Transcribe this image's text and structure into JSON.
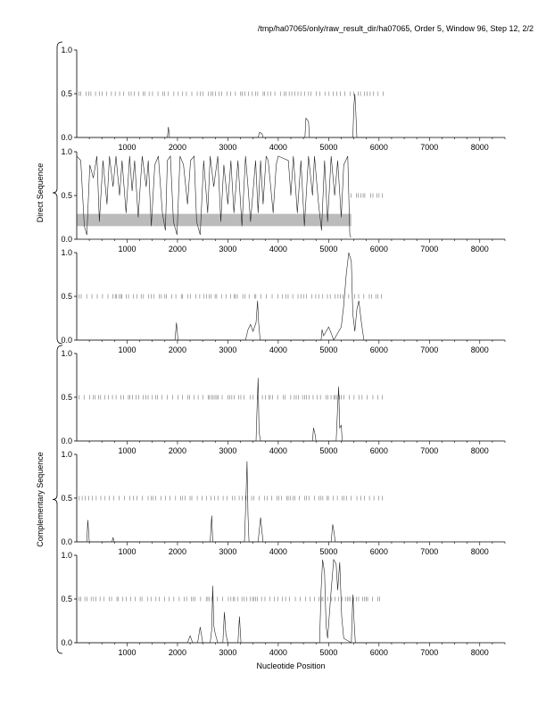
{
  "header": {
    "path": "/tmp/ha07065/only/raw_result_dir/ha07065, Order 5, Window 96, Step 12, 2/2"
  },
  "group_labels": {
    "top": "Direct Sequence",
    "bottom": "Complementary Sequence"
  },
  "xlabel": "Nucleotide Position",
  "colors": {
    "line": "#222222",
    "ticks": "#555555",
    "band": "#bbbbbb",
    "axis": "#000000"
  },
  "chart_data": [
    {
      "type": "line",
      "panel": 1,
      "group": "Direct Sequence",
      "xlim": [
        0,
        8500
      ],
      "ylim": [
        0,
        1
      ],
      "x_ticks": [
        "1000",
        "2000",
        "3000",
        "4000",
        "5000",
        "6000",
        "7000",
        "8000"
      ],
      "y_ticks": [
        "0.0",
        "0.5",
        "1.0"
      ],
      "series": [
        {
          "points": [
            [
              0,
              0
            ],
            [
              1800,
              0
            ],
            [
              1820,
              0.12
            ],
            [
              1840,
              0
            ],
            [
              3600,
              0
            ],
            [
              3630,
              0.06
            ],
            [
              3680,
              0.04
            ],
            [
              3700,
              0
            ],
            [
              4530,
              0
            ],
            [
              4550,
              0.22
            ],
            [
              4580,
              0.2
            ],
            [
              4600,
              0.18
            ],
            [
              4620,
              0
            ],
            [
              5480,
              0
            ],
            [
              5500,
              0.35
            ],
            [
              5520,
              0.5
            ],
            [
              5540,
              0.3
            ],
            [
              5560,
              0
            ],
            [
              6000,
              0
            ]
          ]
        }
      ],
      "orf_marks": {
        "y": 0.5,
        "x_start": 50,
        "x_end": 6100
      }
    },
    {
      "type": "line",
      "panel": 2,
      "group": "Direct Sequence",
      "xlim": [
        0,
        8500
      ],
      "ylim": [
        0,
        1
      ],
      "x_ticks": [
        "1000",
        "2000",
        "3000",
        "4000",
        "5000",
        "6000",
        "7000",
        "8000"
      ],
      "y_ticks": [
        "0.0",
        "0.5",
        "1.0"
      ],
      "series": [
        {
          "points": [
            [
              0,
              0.95
            ],
            [
              80,
              0.9
            ],
            [
              150,
              0.15
            ],
            [
              200,
              0.05
            ],
            [
              260,
              0.85
            ],
            [
              330,
              0.7
            ],
            [
              400,
              0.95
            ],
            [
              450,
              0.2
            ],
            [
              520,
              0.9
            ],
            [
              600,
              0.4
            ],
            [
              650,
              0.95
            ],
            [
              720,
              0.6
            ],
            [
              780,
              0.95
            ],
            [
              850,
              0.5
            ],
            [
              900,
              0.9
            ],
            [
              980,
              0.3
            ],
            [
              1050,
              0.95
            ],
            [
              1100,
              0.55
            ],
            [
              1150,
              0.9
            ],
            [
              1220,
              0.25
            ],
            [
              1300,
              0.95
            ],
            [
              1380,
              0.6
            ],
            [
              1420,
              0.9
            ],
            [
              1480,
              0.15
            ],
            [
              1550,
              0.85
            ],
            [
              1620,
              0.95
            ],
            [
              1700,
              0.3
            ],
            [
              1760,
              0.1
            ],
            [
              1800,
              0.9
            ],
            [
              1860,
              0.95
            ],
            [
              1920,
              0.2
            ],
            [
              1990,
              0.05
            ],
            [
              2050,
              0.95
            ],
            [
              2120,
              0.85
            ],
            [
              2200,
              0.4
            ],
            [
              2260,
              0.9
            ],
            [
              2330,
              0.95
            ],
            [
              2380,
              0.2
            ],
            [
              2450,
              0.05
            ],
            [
              2520,
              0.9
            ],
            [
              2600,
              0.3
            ],
            [
              2650,
              0.95
            ],
            [
              2720,
              0.6
            ],
            [
              2800,
              0.95
            ],
            [
              2860,
              0.2
            ],
            [
              2920,
              0.85
            ],
            [
              3000,
              0.4
            ],
            [
              3060,
              0.9
            ],
            [
              3120,
              0.3
            ],
            [
              3200,
              0.9
            ],
            [
              3280,
              0.15
            ],
            [
              3350,
              0.95
            ],
            [
              3400,
              0.6
            ],
            [
              3450,
              0.2
            ],
            [
              3550,
              0.9
            ],
            [
              3600,
              0.3
            ],
            [
              3650,
              0.9
            ],
            [
              3700,
              0.4
            ],
            [
              3760,
              0.95
            ],
            [
              3800,
              0.9
            ],
            [
              3900,
              0.3
            ],
            [
              3960,
              0.85
            ],
            [
              4000,
              0.95
            ],
            [
              4200,
              0.9
            ],
            [
              4250,
              0.5
            ],
            [
              4300,
              0.95
            ],
            [
              4380,
              0.3
            ],
            [
              4450,
              0.9
            ],
            [
              4520,
              0.15
            ],
            [
              4600,
              0.95
            ],
            [
              4680,
              0.5
            ],
            [
              4720,
              0.95
            ],
            [
              4800,
              0.4
            ],
            [
              4860,
              0.1
            ],
            [
              4920,
              0.9
            ],
            [
              4980,
              0.2
            ],
            [
              5050,
              0.95
            ],
            [
              5120,
              0.5
            ],
            [
              5180,
              0.9
            ],
            [
              5250,
              0.25
            ],
            [
              5300,
              0.85
            ],
            [
              5380,
              0.95
            ],
            [
              5420,
              0.05
            ],
            [
              5440,
              0.02
            ]
          ]
        }
      ],
      "orf_marks": {
        "y": 0.5,
        "x_start": 5450,
        "x_end": 6100
      },
      "band": {
        "x": [
          0,
          5450
        ],
        "y": [
          0.15,
          0.29
        ]
      }
    },
    {
      "type": "line",
      "panel": 3,
      "group": "Direct Sequence",
      "xlim": [
        0,
        8500
      ],
      "ylim": [
        0,
        1
      ],
      "x_ticks": [
        "1000",
        "2000",
        "3000",
        "4000",
        "5000",
        "6000",
        "7000",
        "8000"
      ],
      "y_ticks": [
        "0.0",
        "0.5",
        "1.0"
      ],
      "series": [
        {
          "points": [
            [
              0,
              0
            ],
            [
              1950,
              0
            ],
            [
              1980,
              0.2
            ],
            [
              2010,
              0
            ],
            [
              3350,
              0
            ],
            [
              3400,
              0.12
            ],
            [
              3450,
              0.18
            ],
            [
              3500,
              0.1
            ],
            [
              3560,
              0.2
            ],
            [
              3590,
              0.45
            ],
            [
              3610,
              0.2
            ],
            [
              3640,
              0
            ],
            [
              4850,
              0
            ],
            [
              4870,
              0.12
            ],
            [
              4900,
              0.05
            ],
            [
              5000,
              0.15
            ],
            [
              5050,
              0.08
            ],
            [
              5100,
              0
            ],
            [
              5250,
              0.15
            ],
            [
              5300,
              0.4
            ],
            [
              5350,
              0.75
            ],
            [
              5400,
              1.0
            ],
            [
              5450,
              0.9
            ],
            [
              5480,
              0.3
            ],
            [
              5520,
              0.1
            ],
            [
              5560,
              0.35
            ],
            [
              5600,
              0.45
            ],
            [
              5650,
              0.2
            ],
            [
              5700,
              0
            ],
            [
              6000,
              0
            ]
          ]
        }
      ],
      "orf_marks": {
        "y": 0.5,
        "x_start": 50,
        "x_end": 6100
      }
    },
    {
      "type": "line",
      "panel": 4,
      "group": "Complementary Sequence",
      "xlim": [
        0,
        8500
      ],
      "ylim": [
        0,
        1
      ],
      "x_ticks": [
        "1000",
        "2000",
        "3000",
        "4000",
        "5000",
        "6000",
        "7000",
        "8000"
      ],
      "y_ticks": [
        "0.0",
        "0.5",
        "1.0"
      ],
      "series": [
        {
          "points": [
            [
              0,
              0
            ],
            [
              3560,
              0
            ],
            [
              3580,
              0.4
            ],
            [
              3600,
              0.72
            ],
            [
              3620,
              0.1
            ],
            [
              3650,
              0
            ],
            [
              4680,
              0
            ],
            [
              4700,
              0.15
            ],
            [
              4730,
              0.08
            ],
            [
              4750,
              0
            ],
            [
              5150,
              0
            ],
            [
              5180,
              0.4
            ],
            [
              5200,
              0.62
            ],
            [
              5220,
              0.15
            ],
            [
              5250,
              0.18
            ],
            [
              5270,
              0
            ],
            [
              6000,
              0
            ]
          ]
        }
      ],
      "orf_marks": {
        "y": 0.5,
        "x_start": 50,
        "x_end": 6100
      }
    },
    {
      "type": "line",
      "panel": 5,
      "group": "Complementary Sequence",
      "xlim": [
        0,
        8500
      ],
      "ylim": [
        0,
        1
      ],
      "x_ticks": [
        "1000",
        "2000",
        "3000",
        "4000",
        "5000",
        "6000",
        "7000",
        "8000"
      ],
      "y_ticks": [
        "0.0",
        "0.5",
        "1.0"
      ],
      "series": [
        {
          "points": [
            [
              0,
              0
            ],
            [
              200,
              0
            ],
            [
              220,
              0.25
            ],
            [
              250,
              0
            ],
            [
              700,
              0
            ],
            [
              720,
              0.05
            ],
            [
              740,
              0
            ],
            [
              2650,
              0
            ],
            [
              2680,
              0.3
            ],
            [
              2700,
              0
            ],
            [
              3330,
              0
            ],
            [
              3360,
              0.5
            ],
            [
              3380,
              0.92
            ],
            [
              3400,
              0.3
            ],
            [
              3420,
              0
            ],
            [
              3600,
              0
            ],
            [
              3650,
              0.28
            ],
            [
              3680,
              0.1
            ],
            [
              3700,
              0
            ],
            [
              5050,
              0
            ],
            [
              5080,
              0.2
            ],
            [
              5110,
              0.1
            ],
            [
              5130,
              0
            ],
            [
              6000,
              0
            ]
          ]
        }
      ],
      "orf_marks": {
        "y": 0.5,
        "x_start": 50,
        "x_end": 6100
      }
    },
    {
      "type": "line",
      "panel": 6,
      "group": "Complementary Sequence",
      "xlim": [
        0,
        8500
      ],
      "ylim": [
        0,
        1
      ],
      "x_ticks": [
        "1000",
        "2000",
        "3000",
        "4000",
        "5000",
        "6000",
        "7000",
        "8000"
      ],
      "y_ticks": [
        "0.0",
        "0.5",
        "1.0"
      ],
      "series": [
        {
          "points": [
            [
              0,
              0
            ],
            [
              2200,
              0
            ],
            [
              2250,
              0.08
            ],
            [
              2300,
              0
            ],
            [
              2400,
              0
            ],
            [
              2450,
              0.18
            ],
            [
              2500,
              0
            ],
            [
              2650,
              0
            ],
            [
              2680,
              0.15
            ],
            [
              2700,
              0.65
            ],
            [
              2720,
              0.2
            ],
            [
              2750,
              0.1
            ],
            [
              2800,
              0
            ],
            [
              2900,
              0
            ],
            [
              2930,
              0.35
            ],
            [
              2960,
              0.1
            ],
            [
              3000,
              0
            ],
            [
              3200,
              0
            ],
            [
              3230,
              0.3
            ],
            [
              3260,
              0
            ],
            [
              4820,
              0
            ],
            [
              4850,
              0.6
            ],
            [
              4880,
              0.95
            ],
            [
              4920,
              0.8
            ],
            [
              4950,
              0.2
            ],
            [
              4980,
              0.05
            ],
            [
              5050,
              0.6
            ],
            [
              5100,
              0.95
            ],
            [
              5150,
              0.9
            ],
            [
              5180,
              0.6
            ],
            [
              5220,
              0.92
            ],
            [
              5260,
              0.3
            ],
            [
              5300,
              0.05
            ],
            [
              5450,
              0
            ],
            [
              5480,
              0.55
            ],
            [
              5500,
              0.3
            ],
            [
              5530,
              0
            ],
            [
              6000,
              0
            ]
          ]
        }
      ],
      "orf_marks": {
        "y": 0.5,
        "x_start": 50,
        "x_end": 6100
      }
    }
  ]
}
